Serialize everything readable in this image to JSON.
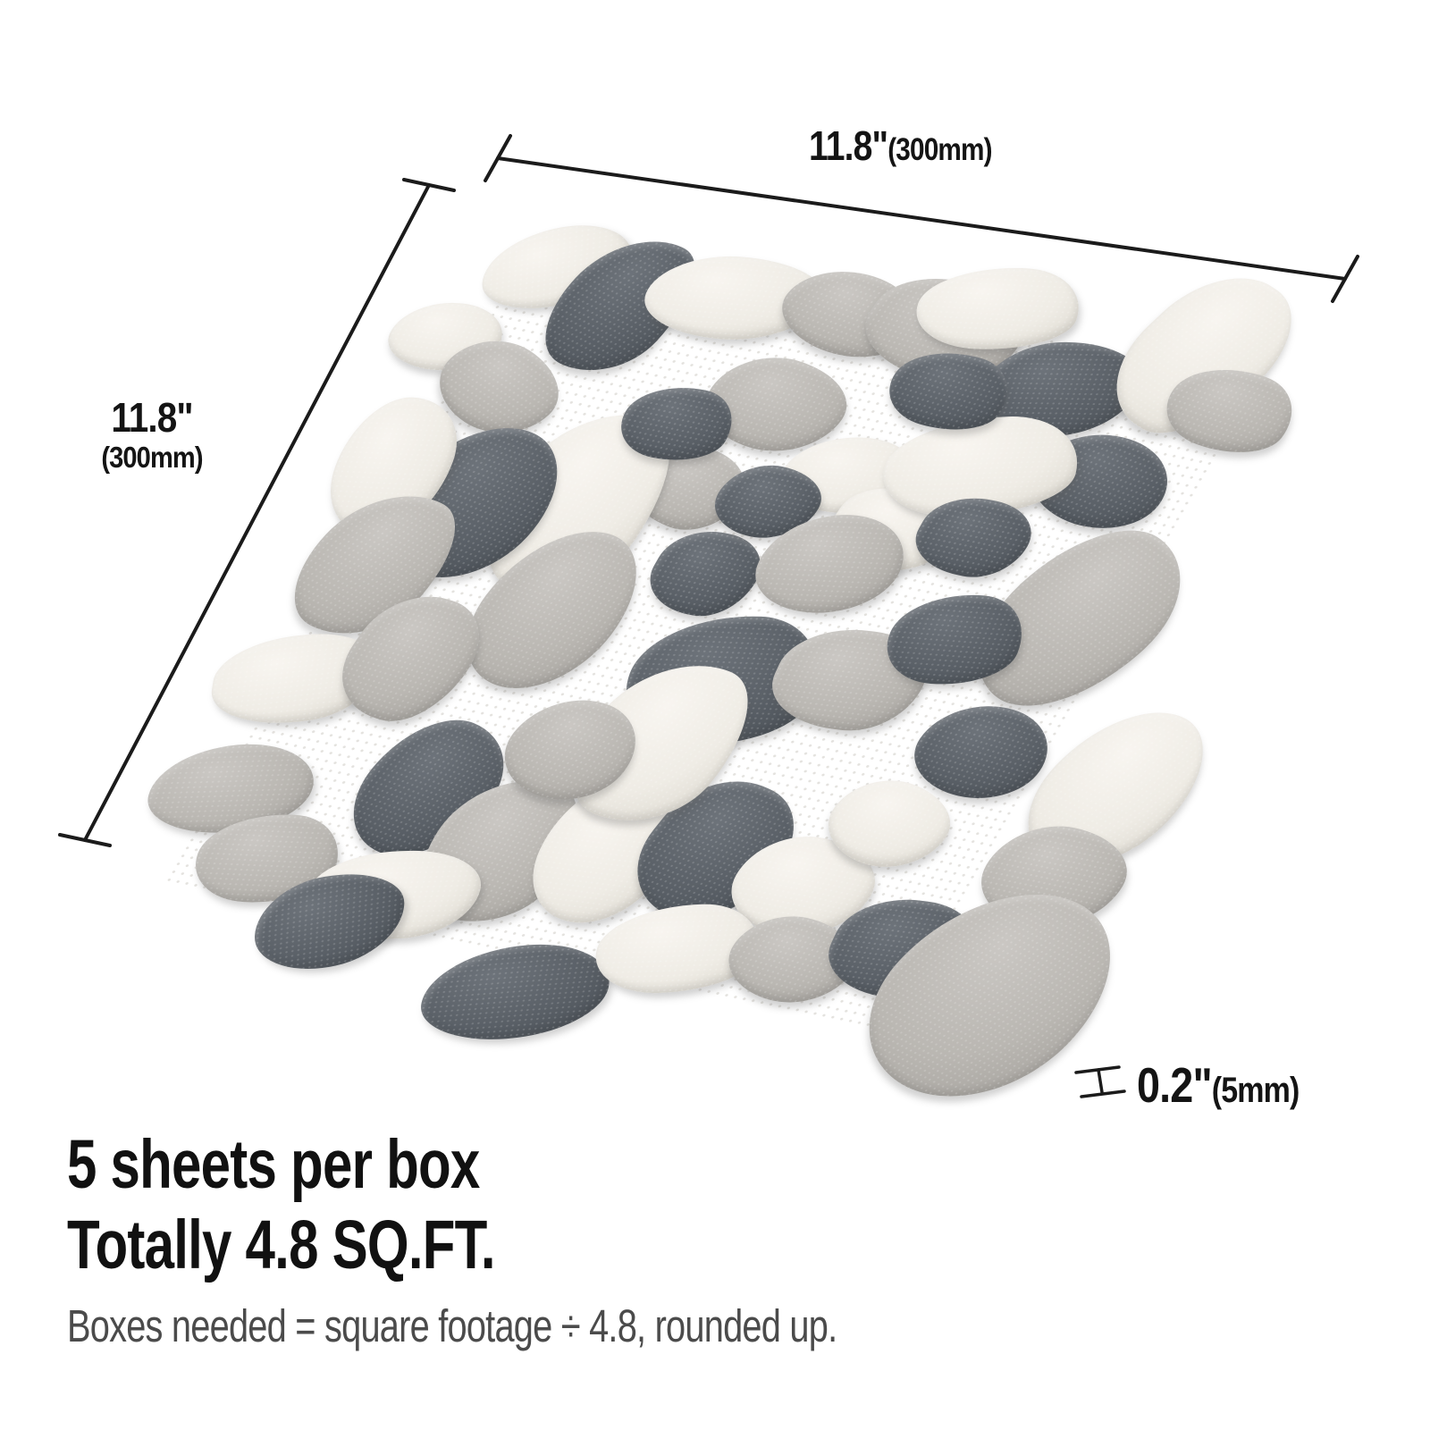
{
  "page": {
    "background": "#ffffff"
  },
  "dimensions": {
    "top": {
      "value": "11.8\"",
      "unit": "(300mm)"
    },
    "left": {
      "value": "11.8\"",
      "unit": "(300mm)"
    },
    "thickness": {
      "value": "0.2\"",
      "unit": "(5mm)"
    }
  },
  "info": {
    "line1": "5 sheets per box",
    "line2": "Totally 4.8 SQ.FT.",
    "note": "Boxes needed = square footage ÷ 4.8, rounded up."
  },
  "colors": {
    "dimension_line": "#1b1b1b",
    "heading_text": "#111111",
    "note_text": "#4b4b4b"
  },
  "tile": {
    "description": "square interlocking sliced pebble mosaic sheet, white mesh backing",
    "palette": {
      "white": [
        "#f8f5f0",
        "#efece5",
        "#d9d5cc"
      ],
      "light": [
        "#cac7c3",
        "#bab7b2",
        "#a09d98"
      ],
      "dark": [
        "#6d737a",
        "#5a6067",
        "#464c52"
      ]
    },
    "pebbles": [
      [
        42,
        36,
        150,
        98,
        -25,
        "w",
        "A"
      ],
      [
        128,
        64,
        128,
        168,
        15,
        "d",
        "B"
      ],
      [
        238,
        30,
        185,
        100,
        -8,
        "w",
        "C"
      ],
      [
        365,
        20,
        150,
        95,
        10,
        "g",
        "A"
      ],
      [
        469,
        16,
        170,
        115,
        5,
        "g",
        "D"
      ],
      [
        512,
        -20,
        170,
        100,
        -10,
        "w",
        "B"
      ],
      [
        620,
        56,
        165,
        115,
        -12,
        "d",
        "C"
      ],
      [
        715,
        150,
        148,
        108,
        10,
        "d",
        "A"
      ],
      [
        745,
        -16,
        148,
        195,
        20,
        "w",
        "D"
      ],
      [
        805,
        40,
        140,
        95,
        8,
        "g",
        "B"
      ],
      [
        -30,
        140,
        118,
        82,
        -5,
        "w",
        "A"
      ],
      [
        53,
        185,
        138,
        98,
        20,
        "g",
        "C"
      ],
      [
        300,
        252,
        125,
        95,
        12,
        "g",
        "D"
      ],
      [
        201,
        295,
        160,
        225,
        5,
        "w",
        "B"
      ],
      [
        93,
        320,
        158,
        188,
        10,
        "d",
        "A"
      ],
      [
        -8,
        298,
        120,
        168,
        -10,
        "w",
        "C"
      ],
      [
        30,
        412,
        140,
        178,
        15,
        "g",
        "B"
      ],
      [
        236,
        422,
        150,
        198,
        8,
        "g",
        "A"
      ],
      [
        369,
        346,
        112,
        100,
        0,
        "d",
        "D"
      ],
      [
        343,
        140,
        150,
        108,
        5,
        "g",
        "C"
      ],
      [
        254,
        184,
        118,
        88,
        0,
        "d",
        "B"
      ],
      [
        457,
        202,
        140,
        92,
        -8,
        "w",
        "A"
      ],
      [
        391,
        251,
        110,
        86,
        0,
        "d",
        "C"
      ],
      [
        533,
        252,
        132,
        92,
        5,
        "w",
        "D"
      ],
      [
        586,
        162,
        200,
        122,
        -15,
        "w",
        "B"
      ],
      [
        490,
        306,
        150,
        120,
        -10,
        "g",
        "A"
      ],
      [
        619,
        243,
        120,
        92,
        0,
        "d",
        "D"
      ],
      [
        774,
        310,
        168,
        228,
        20,
        "g",
        "C"
      ],
      [
        909,
        492,
        150,
        198,
        15,
        "w",
        "A"
      ],
      [
        449,
        462,
        198,
        158,
        -10,
        "d",
        "B"
      ],
      [
        576,
        432,
        158,
        120,
        -5,
        "g",
        "D"
      ],
      [
        752,
        482,
        140,
        110,
        5,
        "d",
        "A"
      ],
      [
        897,
        606,
        150,
        120,
        0,
        "g",
        "C"
      ],
      [
        16,
        560,
        168,
        108,
        -20,
        "w",
        "D"
      ],
      [
        15,
        698,
        168,
        108,
        -15,
        "g",
        "A"
      ],
      [
        214,
        652,
        138,
        168,
        10,
        "d",
        "C"
      ],
      [
        322,
        705,
        148,
        178,
        5,
        "g",
        "B"
      ],
      [
        430,
        680,
        138,
        178,
        -5,
        "w",
        "A"
      ],
      [
        539,
        655,
        148,
        168,
        10,
        "d",
        "D"
      ],
      [
        649,
        675,
        148,
        118,
        0,
        "w",
        "C"
      ],
      [
        422,
        546,
        158,
        198,
        10,
        "w",
        "B"
      ],
      [
        92,
        768,
        148,
        108,
        -10,
        "g",
        "B"
      ],
      [
        240,
        780,
        178,
        108,
        -15,
        "w",
        "D"
      ],
      [
        420,
        860,
        190,
        115,
        -18,
        "d",
        "A"
      ],
      [
        559,
        774,
        168,
        108,
        -15,
        "w",
        "B"
      ],
      [
        680,
        760,
        135,
        100,
        5,
        "g",
        "C"
      ],
      [
        785,
        722,
        150,
        118,
        -5,
        "d",
        "D"
      ],
      [
        901,
        752,
        225,
        255,
        15,
        "g",
        "A"
      ],
      [
        510,
        84,
        130,
        90,
        5,
        "d",
        "B"
      ],
      [
        700,
        585,
        130,
        100,
        8,
        "w",
        "C"
      ],
      [
        120,
        510,
        130,
        150,
        5,
        "g",
        "D"
      ],
      [
        660,
        362,
        140,
        110,
        -8,
        "d",
        "B"
      ],
      [
        335,
        575,
        135,
        120,
        10,
        "g",
        "A"
      ],
      [
        191,
        824,
        150,
        115,
        -25,
        "d",
        "C"
      ]
    ]
  }
}
